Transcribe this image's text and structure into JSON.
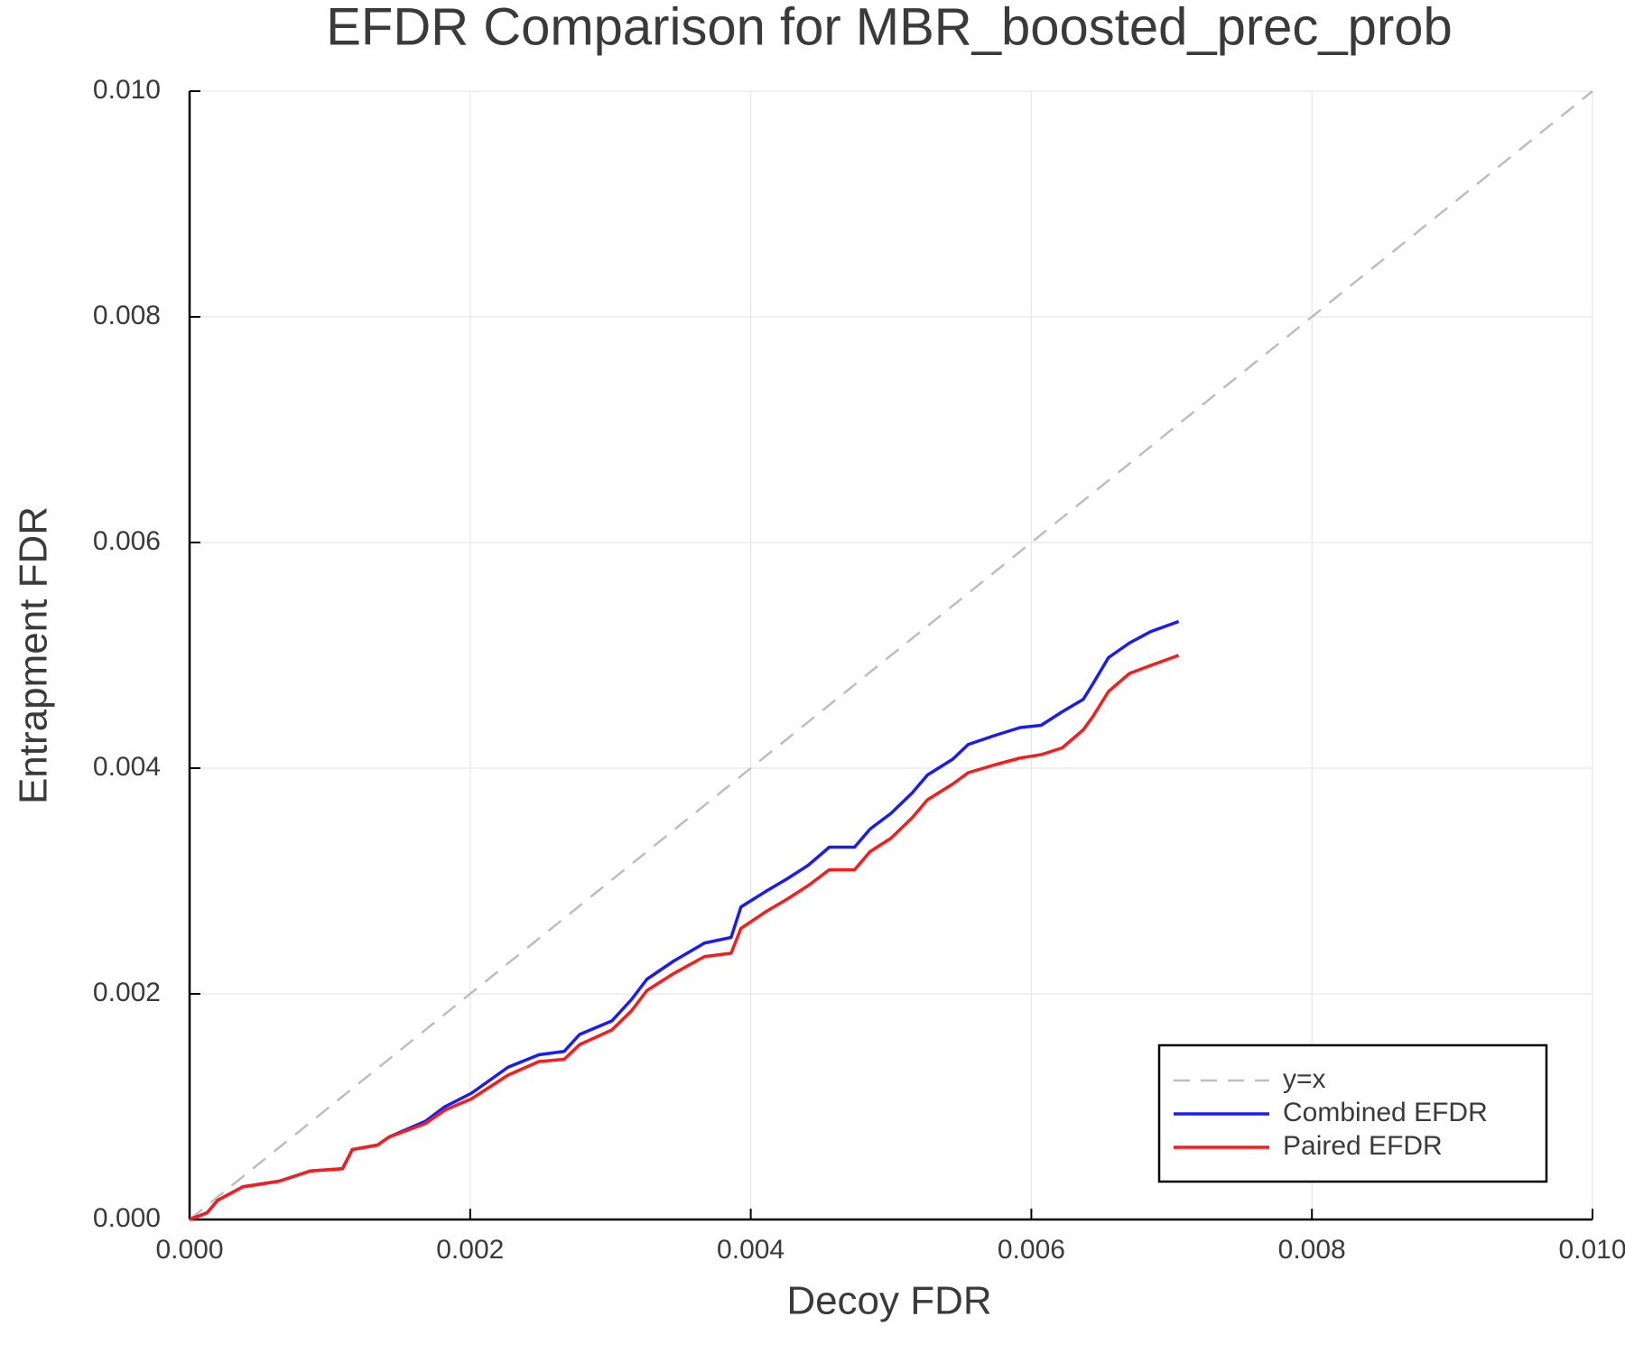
{
  "chart_data": {
    "type": "line",
    "title": "EFDR Comparison for MBR_boosted_prec_prob",
    "x_label": "Decoy FDR",
    "y_label": "Entrapment FDR",
    "xlim": [
      0,
      0.01
    ],
    "ylim": [
      0,
      0.01
    ],
    "xticks": [
      {
        "value": 0,
        "label": "0.000"
      },
      0.002,
      0.004,
      0.006,
      0.008,
      {
        "value": 0.01,
        "label": "0.010"
      }
    ],
    "yticks": [
      {
        "value": 0,
        "label": "0.000"
      },
      0.002,
      0.004,
      0.006,
      0.008,
      {
        "value": 0.01,
        "label": "0.010"
      }
    ],
    "grid": true,
    "legend": "bottom-right",
    "series": [
      {
        "name": "y=x",
        "color": "#bdbdbd",
        "dash": true,
        "x": [
          0,
          0.01
        ],
        "values": [
          0,
          0.01
        ]
      },
      {
        "name": "Combined EFDR",
        "color": "#1a1aff",
        "dash": false,
        "x": [
          0,
          0.000125,
          0.0002,
          0.00038,
          0.00064,
          0.00086,
          0.00109,
          0.00116,
          0.00134,
          0.00142,
          0.00168,
          0.00182,
          0.00201,
          0.00227,
          0.00249,
          0.00267,
          0.00278,
          0.00301,
          0.00315,
          0.00326,
          0.00345,
          0.00367,
          0.00386,
          0.00393,
          0.00411,
          0.00426,
          0.00441,
          0.00456,
          0.00474,
          0.00485,
          0.005,
          0.00515,
          0.00526,
          0.00544,
          0.00555,
          0.00574,
          0.00592,
          0.00607,
          0.00622,
          0.00637,
          0.00644,
          0.00655,
          0.0067,
          0.00685,
          0.00705
        ],
        "values": [
          0,
          6e-05,
          0.00017,
          0.00029,
          0.00034,
          0.00043,
          0.00045,
          0.00062,
          0.00066,
          0.00073,
          0.00087,
          0.001,
          0.00112,
          0.00135,
          0.00146,
          0.00149,
          0.00164,
          0.00176,
          0.00195,
          0.00213,
          0.00229,
          0.00245,
          0.0025,
          0.00277,
          0.00291,
          0.00302,
          0.00314,
          0.0033,
          0.0033,
          0.00346,
          0.0036,
          0.00378,
          0.00394,
          0.00408,
          0.00421,
          0.00429,
          0.00436,
          0.00438,
          0.0045,
          0.00461,
          0.00475,
          0.00498,
          0.00511,
          0.00521,
          0.0053
        ]
      },
      {
        "name": "Paired EFDR",
        "color": "#ff1a1a",
        "dash": false,
        "x": [
          0,
          0.000125,
          0.0002,
          0.00038,
          0.00064,
          0.00086,
          0.00109,
          0.00116,
          0.00134,
          0.00142,
          0.00168,
          0.00182,
          0.00201,
          0.00227,
          0.00249,
          0.00267,
          0.00278,
          0.00301,
          0.00315,
          0.00326,
          0.00345,
          0.00367,
          0.00386,
          0.00393,
          0.00411,
          0.00426,
          0.00441,
          0.00456,
          0.00474,
          0.00485,
          0.005,
          0.00515,
          0.00526,
          0.00544,
          0.00555,
          0.00574,
          0.00592,
          0.00607,
          0.00622,
          0.00637,
          0.00644,
          0.00655,
          0.0067,
          0.00685,
          0.00705
        ],
        "values": [
          0,
          6e-05,
          0.00017,
          0.00029,
          0.00034,
          0.00043,
          0.00045,
          0.00062,
          0.00066,
          0.00073,
          0.00085,
          0.00097,
          0.00107,
          0.00128,
          0.0014,
          0.00142,
          0.00155,
          0.00168,
          0.00185,
          0.00203,
          0.00218,
          0.00233,
          0.00236,
          0.00258,
          0.00273,
          0.00284,
          0.00296,
          0.0031,
          0.0031,
          0.00326,
          0.00338,
          0.00356,
          0.00372,
          0.00386,
          0.00396,
          0.00403,
          0.00409,
          0.00412,
          0.00418,
          0.00434,
          0.00446,
          0.00468,
          0.00484,
          0.00491,
          0.005
        ]
      }
    ]
  }
}
